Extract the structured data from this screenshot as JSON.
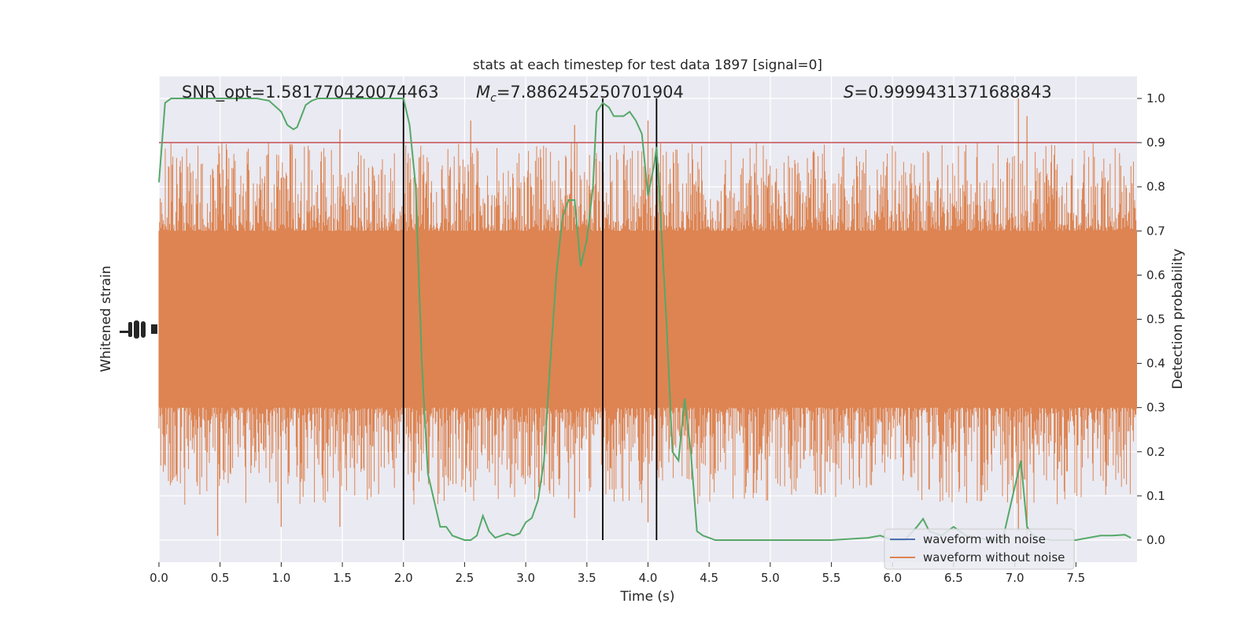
{
  "chart_data": {
    "type": "line",
    "title": "stats at each timestep for test data 1897 [signal=0]",
    "xlabel": "Time (s)",
    "ylabel_left": "Whitened strain",
    "ylabel_right": "Detection probability",
    "xlim": [
      0.0,
      8.0
    ],
    "ylim_right": [
      -0.05,
      1.05
    ],
    "x_ticks": [
      "0.0",
      "0.5",
      "1.0",
      "1.5",
      "2.0",
      "2.5",
      "3.0",
      "3.5",
      "4.0",
      "4.5",
      "5.0",
      "5.5",
      "6.0",
      "6.5",
      "7.0",
      "7.5"
    ],
    "y_ticks_right": [
      "0.0",
      "0.1",
      "0.2",
      "0.3",
      "0.4",
      "0.5",
      "0.6",
      "0.7",
      "0.8",
      "0.9",
      "1.0"
    ],
    "grid": true,
    "legend_position": "lower-right",
    "annotations": {
      "snr": "SNR_opt=1.581770420074463",
      "mc_symbol": "M",
      "mc_sub": "c",
      "mc_value": "=7.886245250701904",
      "s_symbol": "S",
      "s_value": "=0.9999431371688843"
    },
    "threshold": {
      "value": 0.9,
      "color": "#c44e52"
    },
    "vertical_lines": [
      2.0,
      3.63,
      4.07
    ],
    "series": [
      {
        "name": "waveform with noise",
        "color": "#4c72b0"
      },
      {
        "name": "waveform without noise",
        "color": "#dd8452"
      },
      {
        "color": "#55a868",
        "x": [
          0.0,
          0.05,
          0.1,
          0.2,
          0.3,
          0.4,
          0.5,
          0.6,
          0.7,
          0.8,
          0.9,
          1.0,
          1.05,
          1.1,
          1.13,
          1.2,
          1.25,
          1.3,
          1.4,
          1.5,
          1.6,
          1.7,
          1.8,
          1.9,
          2.0,
          2.05,
          2.1,
          2.15,
          2.2,
          2.3,
          2.35,
          2.4,
          2.5,
          2.55,
          2.6,
          2.65,
          2.7,
          2.75,
          2.8,
          2.85,
          2.9,
          2.95,
          3.0,
          3.05,
          3.1,
          3.15,
          3.2,
          3.25,
          3.3,
          3.35,
          3.4,
          3.45,
          3.5,
          3.55,
          3.58,
          3.63,
          3.68,
          3.72,
          3.76,
          3.8,
          3.85,
          3.9,
          3.95,
          4.0,
          4.05,
          4.07,
          4.1,
          4.15,
          4.2,
          4.25,
          4.3,
          4.35,
          4.4,
          4.45,
          4.5,
          4.55,
          4.6,
          4.65,
          4.7,
          4.8,
          4.9,
          5.0,
          5.5,
          5.8,
          5.9,
          6.0,
          6.1,
          6.2,
          6.25,
          6.3,
          6.4,
          6.5,
          6.6,
          6.8,
          6.9,
          7.0,
          7.05,
          7.1,
          7.15,
          7.2,
          7.3,
          7.5,
          7.7,
          7.8,
          7.9,
          7.95
        ],
        "y": [
          0.81,
          0.99,
          1.0,
          1.0,
          1.0,
          1.0,
          1.0,
          1.0,
          1.0,
          1.0,
          0.995,
          0.97,
          0.94,
          0.93,
          0.935,
          0.985,
          0.995,
          1.0,
          1.0,
          1.0,
          1.0,
          1.0,
          1.0,
          1.0,
          1.0,
          0.94,
          0.8,
          0.4,
          0.15,
          0.03,
          0.03,
          0.01,
          0.0,
          0.0,
          0.01,
          0.055,
          0.02,
          0.005,
          0.01,
          0.015,
          0.01,
          0.015,
          0.04,
          0.05,
          0.09,
          0.18,
          0.4,
          0.6,
          0.73,
          0.77,
          0.77,
          0.62,
          0.68,
          0.8,
          0.97,
          0.99,
          0.98,
          0.96,
          0.96,
          0.96,
          0.97,
          0.95,
          0.92,
          0.78,
          0.85,
          0.89,
          0.75,
          0.5,
          0.2,
          0.18,
          0.32,
          0.2,
          0.02,
          0.01,
          0.005,
          0.0,
          0.0,
          0.0,
          0.0,
          0.0,
          0.0,
          0.0,
          0.0,
          0.005,
          0.01,
          0.0,
          0.0,
          0.03,
          0.048,
          0.02,
          0.01,
          0.03,
          0.01,
          0.0,
          0.0,
          0.12,
          0.18,
          0.03,
          0.01,
          0.005,
          0.0,
          0.0,
          0.01,
          0.01,
          0.012,
          0.005
        ]
      }
    ]
  }
}
